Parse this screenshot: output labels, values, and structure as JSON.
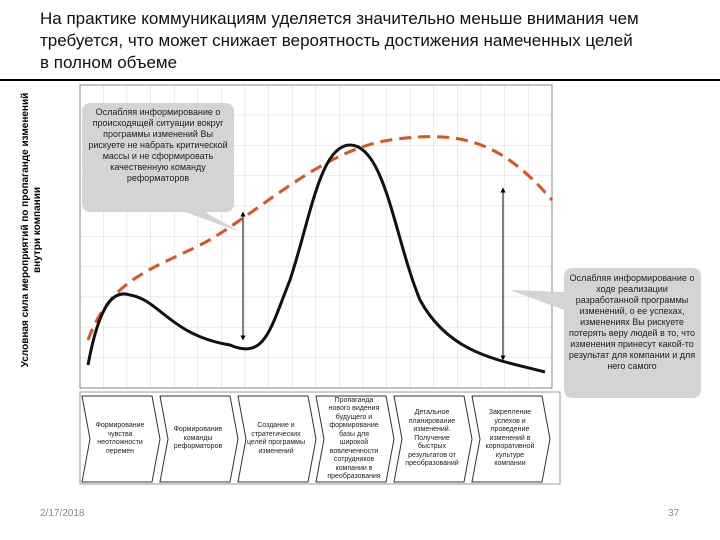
{
  "title": "На практике коммуникациям уделяется значительно меньше внимания чем требуется, что может снижает вероятность достижения намеченных целей в полном объеме",
  "y_axis_label": "Условная сила мероприятий по пропаганде изменений внутри компании",
  "callouts": [
    "Ослабляя информирование о происходящей ситуации вокруг программы изменений Вы рискуете не набрать критической массы и не сформировать качественную команду реформаторов",
    "Ослабляя информирование о ходе реализации разработанной программы изменений, о ее успехах, изменениях Вы рискуете потерять веру людей в то, что изменения принесут какой-то результат для компании и для него самого"
  ],
  "phases": [
    "Формирование чувства неотложности перемен",
    "Формирование команды реформаторов",
    "Создание и стратегических целей программы изменений",
    "Пропаганда нового видения будущего и формирование базы для широкой вовлеченности сотрудников компании в преобразования",
    "Детальное планирование изменений. Получение быстрых результатов от преобразований",
    "Закрепление успехов и проведение изменений в корпоративной культуре компании"
  ],
  "footer": {
    "date": "2/17/2018",
    "page": "37"
  }
}
